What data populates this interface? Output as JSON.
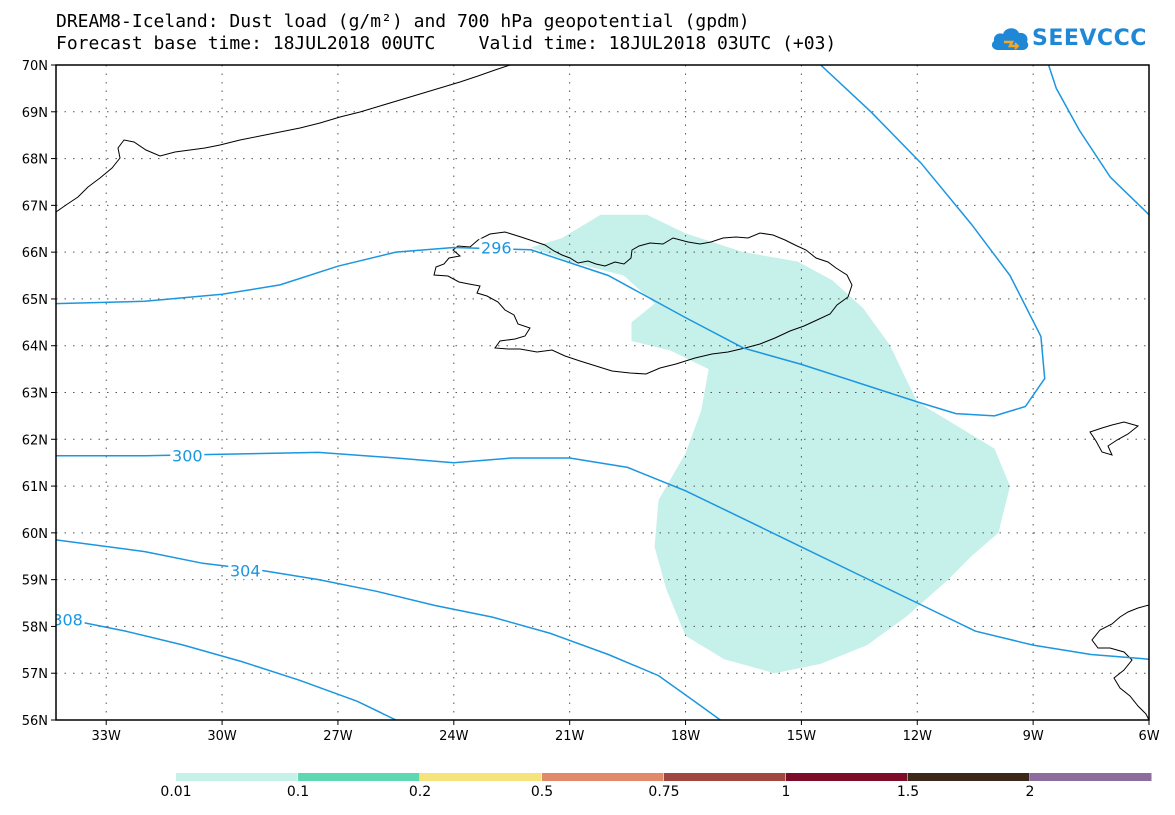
{
  "header": {
    "title": "DREAM8-Iceland: Dust load (g/m²) and 700 hPa geopotential (gpdm)",
    "subtitle": "Forecast base time: 18JUL2018 00UTC    Valid time: 18JUL2018 03UTC (+03)"
  },
  "logo": {
    "text": "SEEVCCC",
    "icon": "cloud-icon"
  },
  "map": {
    "lon_range": [
      -34.3,
      -6.0
    ],
    "lat_range": [
      56,
      70
    ],
    "lat_ticks": [
      "70N",
      "69N",
      "68N",
      "67N",
      "66N",
      "65N",
      "64N",
      "63N",
      "62N",
      "61N",
      "60N",
      "59N",
      "58N",
      "57N",
      "56N"
    ],
    "lon_ticks": [
      "33W",
      "30W",
      "27W",
      "24W",
      "21W",
      "18W",
      "15W",
      "12W",
      "9W",
      "6W"
    ],
    "gridlines": true,
    "contour_color": "#1b96e0",
    "coast_color": "#000000",
    "contours": [
      {
        "value": 296,
        "label": "296",
        "label_lonlat": [
          -22.9,
          66.1
        ],
        "points": [
          [
            -34.3,
            64.9
          ],
          [
            -32,
            64.95
          ],
          [
            -30,
            65.1
          ],
          [
            -28.5,
            65.3
          ],
          [
            -27,
            65.7
          ],
          [
            -25.5,
            66.0
          ],
          [
            -24,
            66.1
          ],
          [
            -22,
            66.05
          ],
          [
            -20,
            65.5
          ],
          [
            -18,
            64.6
          ],
          [
            -16.5,
            63.95
          ],
          [
            -15,
            63.6
          ],
          [
            -13.5,
            63.2
          ],
          [
            -12,
            62.8
          ],
          [
            -11,
            62.55
          ],
          [
            -10,
            62.5
          ],
          [
            -9.2,
            62.7
          ],
          [
            -8.7,
            63.3
          ],
          [
            -8.8,
            64.2
          ],
          [
            -9.6,
            65.5
          ],
          [
            -10.6,
            66.6
          ],
          [
            -11.9,
            67.9
          ],
          [
            -13.2,
            69.0
          ],
          [
            -14.5,
            70.0
          ]
        ]
      },
      {
        "value": 296,
        "label": "",
        "label_lonlat": null,
        "points": [
          [
            -6.0,
            66.8
          ],
          [
            -7.0,
            67.6
          ],
          [
            -7.8,
            68.6
          ],
          [
            -8.4,
            69.5
          ],
          [
            -8.6,
            70.0
          ]
        ]
      },
      {
        "value": 300,
        "label": "300",
        "label_lonlat": [
          -30.9,
          61.65
        ],
        "points": [
          [
            -34.3,
            61.65
          ],
          [
            -32,
            61.65
          ],
          [
            -30,
            61.68
          ],
          [
            -27.5,
            61.72
          ],
          [
            -25.5,
            61.6
          ],
          [
            -24,
            61.5
          ],
          [
            -22.5,
            61.6
          ],
          [
            -21,
            61.6
          ],
          [
            -19.5,
            61.4
          ],
          [
            -18,
            60.9
          ],
          [
            -16.5,
            60.3
          ],
          [
            -15,
            59.7
          ],
          [
            -13.5,
            59.1
          ],
          [
            -12,
            58.5
          ],
          [
            -10.5,
            57.9
          ],
          [
            -9,
            57.6
          ],
          [
            -7.5,
            57.4
          ],
          [
            -6.0,
            57.3
          ]
        ]
      },
      {
        "value": 304,
        "label": "304",
        "label_lonlat": [
          -29.4,
          59.2
        ],
        "points": [
          [
            -34.3,
            59.85
          ],
          [
            -32,
            59.6
          ],
          [
            -30.5,
            59.35
          ],
          [
            -29,
            59.2
          ],
          [
            -27.5,
            59.0
          ],
          [
            -26,
            58.75
          ],
          [
            -24.5,
            58.45
          ],
          [
            -23,
            58.2
          ],
          [
            -21.5,
            57.85
          ],
          [
            -20,
            57.4
          ],
          [
            -18.7,
            56.95
          ],
          [
            -17.6,
            56.3
          ],
          [
            -17.1,
            56.0
          ]
        ]
      },
      {
        "value": 308,
        "label": "308",
        "label_lonlat": [
          -34.0,
          58.15
        ],
        "points": [
          [
            -34.3,
            58.2
          ],
          [
            -32.5,
            57.9
          ],
          [
            -31,
            57.6
          ],
          [
            -29.5,
            57.25
          ],
          [
            -28,
            56.85
          ],
          [
            -26.5,
            56.4
          ],
          [
            -25.5,
            56.0
          ]
        ]
      }
    ],
    "dust_area": {
      "color": "#c6f0ea",
      "points": [
        [
          -21.2,
          66.3
        ],
        [
          -20.2,
          66.8
        ],
        [
          -19.0,
          66.8
        ],
        [
          -18.0,
          66.4
        ],
        [
          -16.5,
          66.0
        ],
        [
          -15.1,
          65.8
        ],
        [
          -14.2,
          65.4
        ],
        [
          -13.4,
          64.8
        ],
        [
          -12.7,
          64.0
        ],
        [
          -12.3,
          63.3
        ],
        [
          -12.0,
          62.8
        ],
        [
          -11.0,
          62.3
        ],
        [
          -10.0,
          61.8
        ],
        [
          -9.6,
          61.0
        ],
        [
          -9.9,
          60.0
        ],
        [
          -10.6,
          59.5
        ],
        [
          -11.2,
          59.0
        ],
        [
          -12.3,
          58.2
        ],
        [
          -13.3,
          57.6
        ],
        [
          -14.5,
          57.2
        ],
        [
          -15.7,
          57.0
        ],
        [
          -17.0,
          57.3
        ],
        [
          -18.0,
          57.8
        ],
        [
          -18.5,
          58.8
        ],
        [
          -18.8,
          59.7
        ],
        [
          -18.7,
          60.7
        ],
        [
          -18.0,
          61.7
        ],
        [
          -17.6,
          62.6
        ],
        [
          -17.4,
          63.5
        ],
        [
          -18.4,
          63.9
        ],
        [
          -19.4,
          64.1
        ],
        [
          -19.4,
          64.5
        ],
        [
          -18.8,
          64.9
        ],
        [
          -19.6,
          65.5
        ],
        [
          -21.0,
          65.8
        ],
        [
          -22.0,
          66.1
        ]
      ]
    }
  },
  "colorbar": {
    "labels": [
      "0.01",
      "0.1",
      "0.2",
      "0.5",
      "0.75",
      "1",
      "1.5",
      "2"
    ],
    "colors": [
      "#c6f0ea",
      "#5ed8b0",
      "#f5e47c",
      "#e2896a",
      "#a04840",
      "#7c0c28",
      "#3c2818",
      "#8e6c9e"
    ]
  }
}
